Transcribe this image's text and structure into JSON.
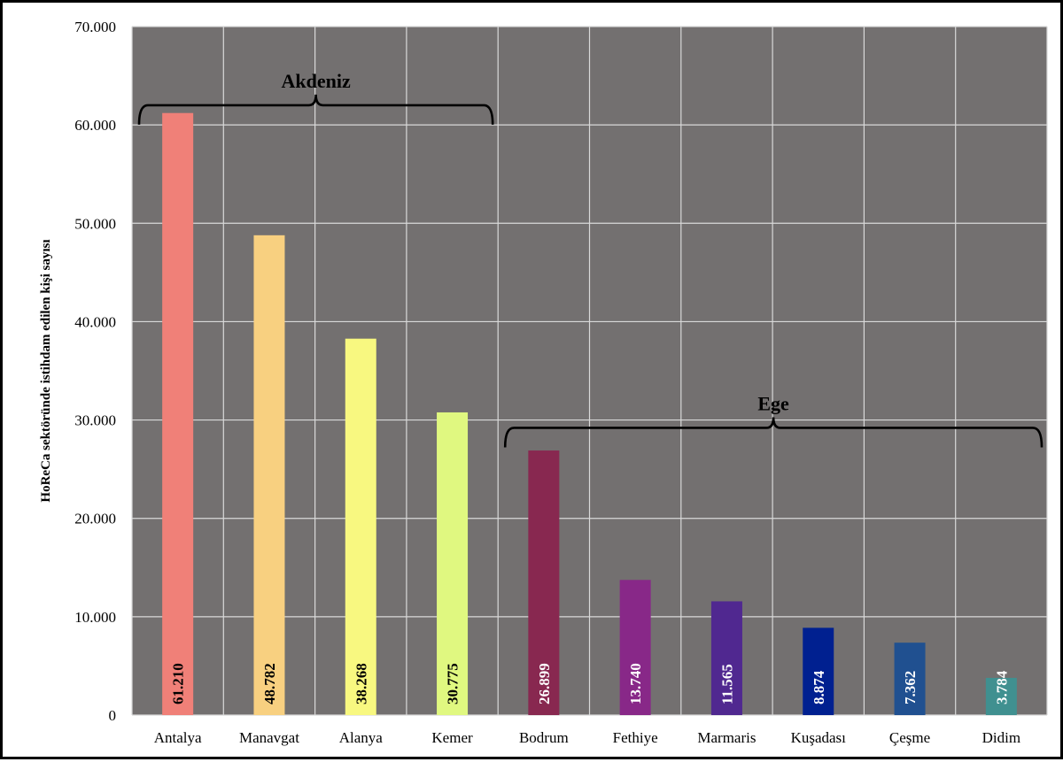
{
  "chart_data": {
    "type": "bar",
    "title": "",
    "xlabel": "",
    "ylabel": "HoReCa sektöründe istihdam edilen kişi sayısı",
    "ylim": [
      0,
      70000
    ],
    "yticks": [
      "0",
      "10.000",
      "20.000",
      "30.000",
      "40.000",
      "50.000",
      "60.000",
      "70.000"
    ],
    "grid": true,
    "categories": [
      "Antalya",
      "Manavgat",
      "Alanya",
      "Kemer",
      "Bodrum",
      "Fethiye",
      "Marmaris",
      "Kuşadası",
      "Çeşme",
      "Didim"
    ],
    "values": [
      61210,
      48782,
      38268,
      30775,
      26899,
      13740,
      11565,
      8874,
      7362,
      3784
    ],
    "value_labels": [
      "61.210",
      "48.782",
      "38.268",
      "30.775",
      "26.899",
      "13.740",
      "11.565",
      "8.874",
      "7.362",
      "3.784"
    ],
    "colors": [
      "#f08078",
      "#f8d080",
      "#f8f880",
      "#e0f880",
      "#882850",
      "#882888",
      "#502890",
      "#002090",
      "#205090",
      "#409090"
    ],
    "label_colors": [
      "#000000",
      "#000000",
      "#000000",
      "#000000",
      "#ffffff",
      "#ffffff",
      "#ffffff",
      "#ffffff",
      "#ffffff",
      "#ffffff"
    ],
    "plot_background": "#737070",
    "groups": [
      {
        "name": "Akdeniz",
        "from": 0,
        "to": 3,
        "level": 62000
      },
      {
        "name": "Ege",
        "from": 4,
        "to": 9,
        "level": 29200
      }
    ]
  }
}
